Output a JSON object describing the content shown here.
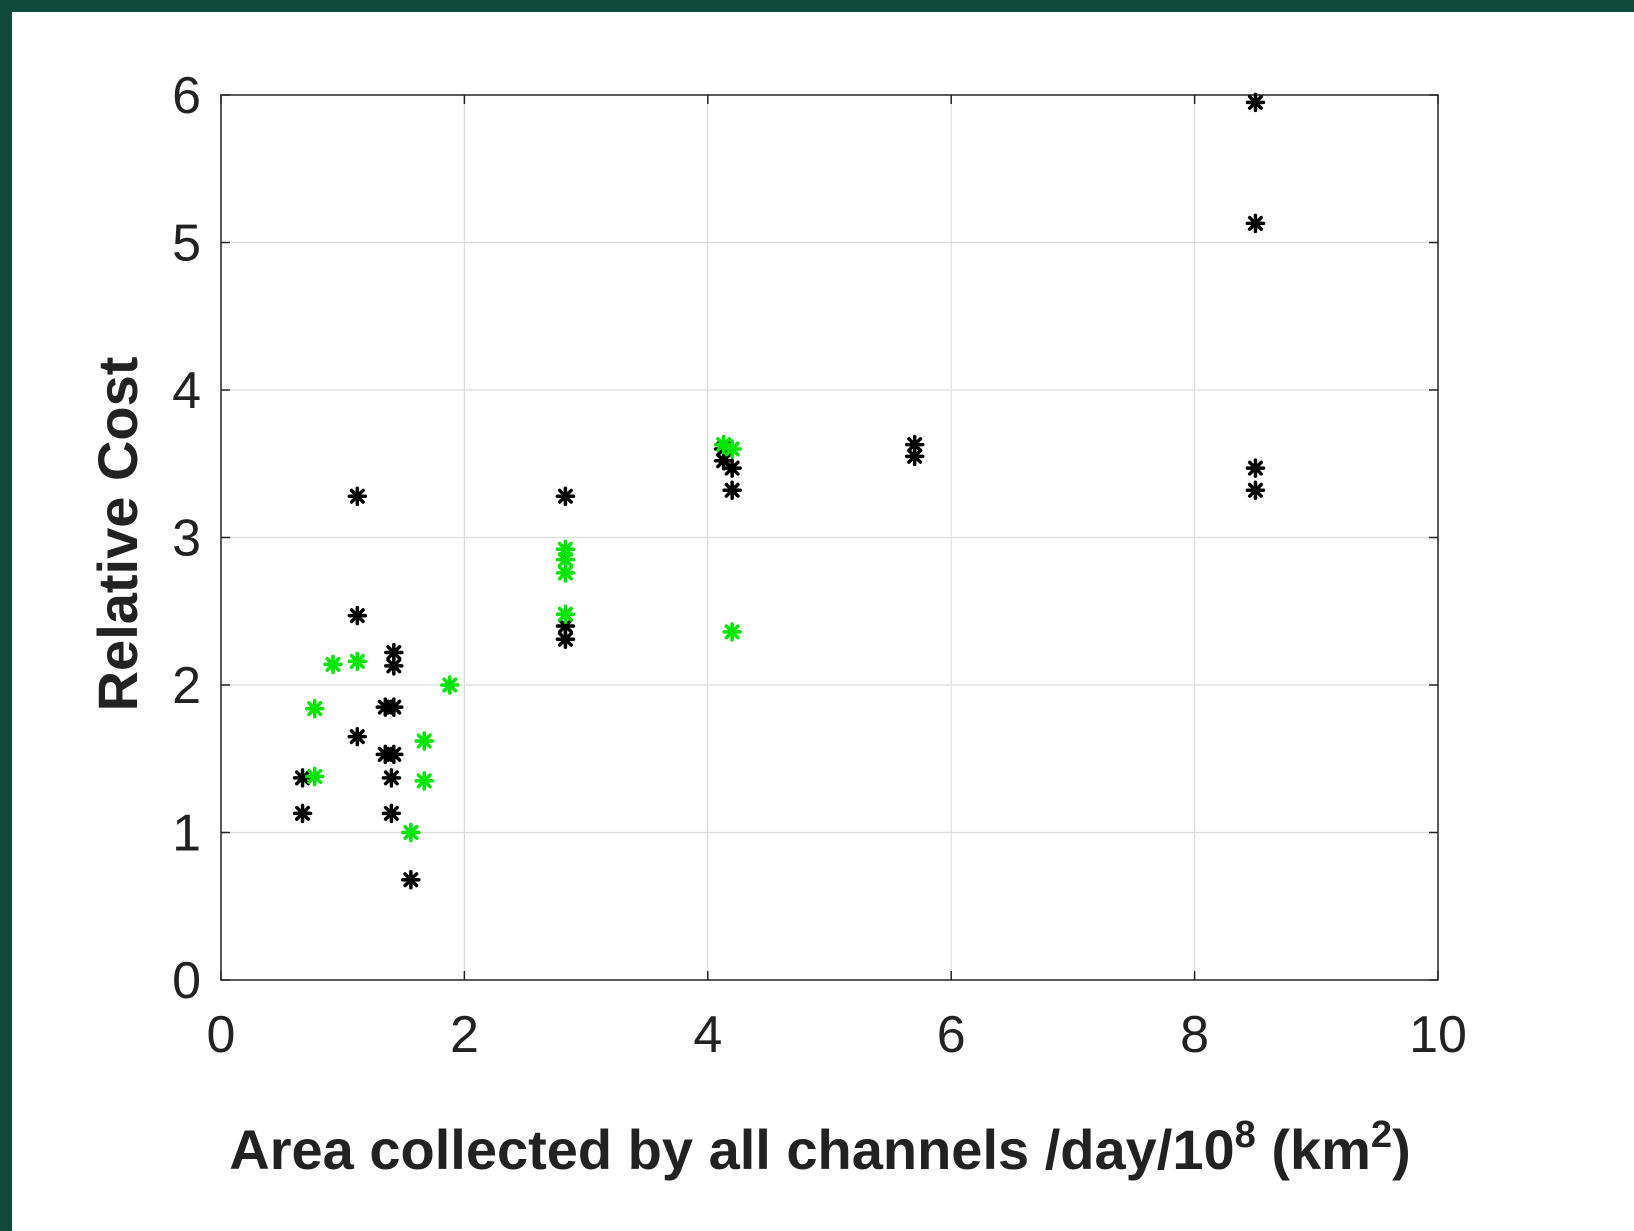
{
  "chart_data": {
    "type": "scatter",
    "title": "",
    "xlabel": "Area collected by all channels /day/10",
    "xlabel_sup1": "8",
    "xlabel_mid": " (km",
    "xlabel_sup2": "2",
    "xlabel_end": ")",
    "ylabel": "Relative Cost",
    "xlim": [
      0,
      10
    ],
    "ylim": [
      0,
      6
    ],
    "xticks": [
      "0",
      "2",
      "4",
      "6",
      "8",
      "10"
    ],
    "yticks": [
      "0",
      "1",
      "2",
      "3",
      "4",
      "5",
      "6"
    ],
    "grid": true,
    "marker": "asterisk",
    "series": [
      {
        "color": "#000000",
        "points": [
          [
            0.67,
            1.37
          ],
          [
            0.67,
            1.13
          ],
          [
            1.12,
            3.28
          ],
          [
            1.12,
            2.47
          ],
          [
            1.12,
            1.65
          ],
          [
            1.35,
            1.85
          ],
          [
            1.42,
            1.85
          ],
          [
            1.35,
            1.53
          ],
          [
            1.42,
            1.53
          ],
          [
            1.42,
            2.22
          ],
          [
            1.42,
            2.13
          ],
          [
            1.4,
            1.37
          ],
          [
            1.4,
            1.13
          ],
          [
            1.56,
            0.68
          ],
          [
            2.83,
            3.28
          ],
          [
            2.83,
            2.31
          ],
          [
            2.83,
            2.4
          ],
          [
            4.13,
            3.52
          ],
          [
            4.2,
            3.47
          ],
          [
            4.2,
            3.32
          ],
          [
            4.13,
            3.6
          ],
          [
            5.7,
            3.63
          ],
          [
            5.7,
            3.55
          ],
          [
            8.5,
            5.95
          ],
          [
            8.5,
            5.13
          ],
          [
            8.5,
            3.47
          ],
          [
            8.5,
            3.32
          ]
        ]
      },
      {
        "color": "#00e600",
        "points": [
          [
            0.77,
            1.84
          ],
          [
            0.77,
            1.38
          ],
          [
            0.92,
            2.14
          ],
          [
            1.12,
            2.16
          ],
          [
            1.56,
            1.0
          ],
          [
            1.67,
            1.62
          ],
          [
            1.67,
            1.35
          ],
          [
            1.88,
            2.0
          ],
          [
            2.83,
            2.92
          ],
          [
            2.83,
            2.85
          ],
          [
            2.83,
            2.76
          ],
          [
            2.83,
            2.48
          ],
          [
            4.13,
            3.63
          ],
          [
            4.2,
            3.6
          ],
          [
            4.2,
            2.36
          ]
        ]
      }
    ]
  }
}
